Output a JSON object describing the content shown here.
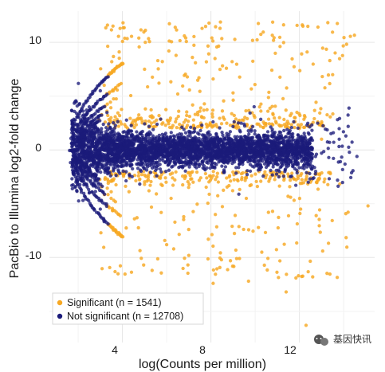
{
  "chart_data": {
    "type": "scatter",
    "title": "",
    "xlabel": "log(Counts per million)",
    "ylabel": "PacBio to Illumina log2-fold change",
    "xlim": [
      0.7,
      15.4
    ],
    "ylim": [
      -17.9,
      12.9
    ],
    "x_ticks": [
      4,
      8,
      12
    ],
    "y_ticks": [
      10,
      0,
      -10
    ],
    "grid": true,
    "legend_position": "bottom-left",
    "series": [
      {
        "name": "Significant (n = 1541)",
        "color": "#F7A823",
        "sample_points": [
          [
            7.6,
            11.3
          ],
          [
            6.8,
            10.6
          ],
          [
            6.1,
            9.2
          ],
          [
            5.6,
            8.3
          ],
          [
            5.0,
            7.5
          ],
          [
            7.3,
            8.1
          ],
          [
            8.1,
            6.6
          ],
          [
            9.0,
            5.3
          ],
          [
            10.2,
            4.0
          ],
          [
            11.1,
            3.0
          ],
          [
            12.0,
            2.0
          ],
          [
            13.0,
            1.0
          ],
          [
            8.2,
            -6.0
          ],
          [
            9.6,
            -4.5
          ],
          [
            10.6,
            -5.8
          ],
          [
            11.6,
            -4.4
          ],
          [
            12.5,
            -3.0
          ],
          [
            13.4,
            -2.2
          ],
          [
            15.1,
            -5.2
          ],
          [
            6.0,
            -8.8
          ],
          [
            7.0,
            -9.8
          ],
          [
            8.1,
            -12.4
          ],
          [
            9.7,
            -12.2
          ],
          [
            11.4,
            -13.2
          ],
          [
            12.3,
            -16.3
          ],
          [
            10.3,
            -9.5
          ],
          [
            5.0,
            -3.2
          ],
          [
            6.2,
            -4.5
          ],
          [
            7.5,
            3.6
          ],
          [
            6.5,
            5.2
          ]
        ]
      },
      {
        "name": "Not significant (n = 12708)",
        "color": "#1B1B7A",
        "sample_points": [
          [
            1.8,
            2.3
          ],
          [
            1.8,
            -2.3
          ],
          [
            1.95,
            0.0
          ],
          [
            2.5,
            4.0
          ],
          [
            2.5,
            -4.0
          ],
          [
            3.0,
            5.5
          ],
          [
            3.0,
            -5.5
          ],
          [
            4.0,
            1.2
          ],
          [
            5.0,
            -0.8
          ],
          [
            6.0,
            0.5
          ],
          [
            7.0,
            -0.5
          ],
          [
            8.0,
            1.0
          ],
          [
            9.0,
            -1.0
          ],
          [
            10.0,
            0.6
          ],
          [
            11.0,
            -0.8
          ],
          [
            12.0,
            0.4
          ],
          [
            13.0,
            -0.3
          ],
          [
            13.8,
            1.0
          ],
          [
            14.6,
            -0.6
          ],
          [
            14.1,
            1.3
          ],
          [
            12.4,
            -3.0
          ],
          [
            9.5,
            2.4
          ],
          [
            8.6,
            -2.1
          ],
          [
            11.3,
            1.8
          ],
          [
            10.7,
            -1.9
          ]
        ]
      }
    ]
  },
  "legend": {
    "significant_label": "Significant (n = 1541)",
    "not_significant_label": "Not significant (n = 12708)"
  },
  "watermark": {
    "text": "基因快讯"
  }
}
